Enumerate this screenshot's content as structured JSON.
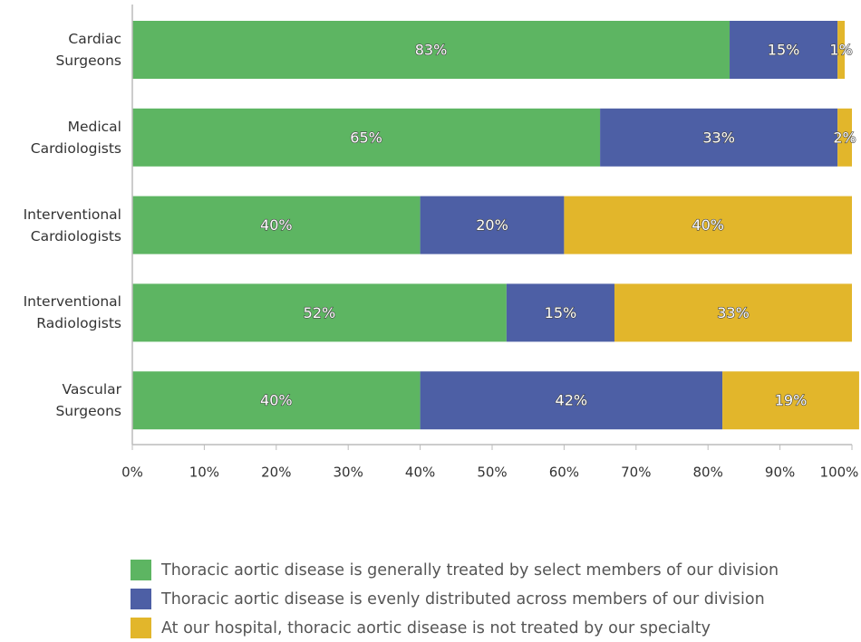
{
  "chart_data": {
    "type": "stacked_barh",
    "categories": [
      "Cardiac Surgeons",
      "Medical Cardiologists",
      "Interventional Cardiologists",
      "Interventional Radiologists",
      "Vascular Surgeons"
    ],
    "series": [
      {
        "name": "Thoracic aortic disease is generally treated by select members of our division",
        "color": "#5db562",
        "values": [
          83,
          65,
          40,
          52,
          40
        ],
        "value_labels": [
          "83%",
          "65%",
          "40%",
          "52%",
          "40%"
        ]
      },
      {
        "name": "Thoracic aortic disease is evenly distributed across members of our division",
        "color": "#4d5fa5",
        "values": [
          15,
          33,
          20,
          15,
          42
        ],
        "value_labels": [
          "15%",
          "33%",
          "20%",
          "15%",
          "42%"
        ]
      },
      {
        "name": "At our hospital, thoracic aortic disease is not treated by our specialty",
        "color": "#e2b62b",
        "values": [
          1,
          2,
          40,
          33,
          19
        ],
        "value_labels": [
          "1%",
          "2%",
          "40%",
          "33%",
          "19%"
        ]
      }
    ],
    "xlim": [
      0,
      100
    ],
    "xticks": [
      {
        "value": 0,
        "label": "0%"
      },
      {
        "value": 10,
        "label": "10%"
      },
      {
        "value": 20,
        "label": "20%"
      },
      {
        "value": 30,
        "label": "30%"
      },
      {
        "value": 40,
        "label": "40%"
      },
      {
        "value": 50,
        "label": "50%"
      },
      {
        "value": 60,
        "label": "60%"
      },
      {
        "value": 70,
        "label": "70%"
      },
      {
        "value": 80,
        "label": "80%"
      },
      {
        "value": 90,
        "label": "90%"
      },
      {
        "value": 100,
        "label": "100%"
      }
    ],
    "legend": "bottom-left"
  }
}
